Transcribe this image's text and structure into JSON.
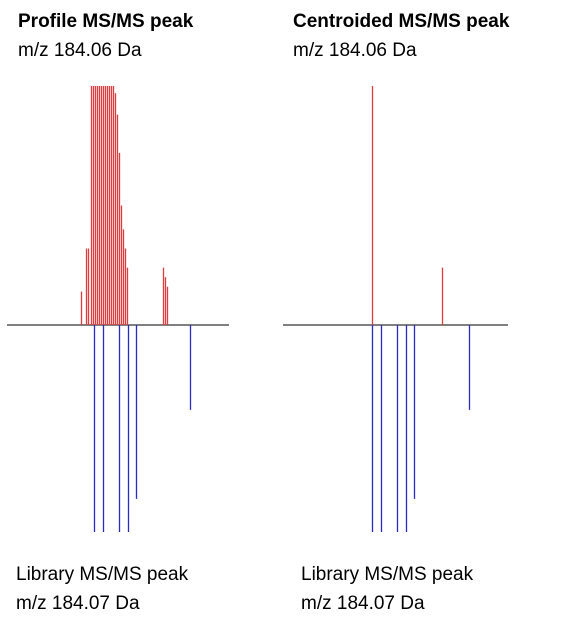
{
  "chart_data": [
    {
      "type": "mirror",
      "title": "Profile MS/MS peak",
      "subtitle": "m/z 184.06 Da",
      "footer_lines": [
        "Library MS/MS peak",
        "m/z 184.07 Da"
      ],
      "xlim": [
        0,
        100
      ],
      "ylim": [
        0,
        100
      ],
      "series": [
        {
          "color": "#e23b3b",
          "direction": "up",
          "x": [
            33.3,
            35.6,
            36.5,
            37.8,
            38.7,
            39.6,
            40.5,
            41.4,
            42.3,
            43.2,
            44.1,
            45.0,
            45.9,
            46.8,
            47.7,
            48.6,
            49.5,
            50.5,
            51.4,
            52.3,
            53.2,
            54.1,
            70.3,
            71.2,
            72.1
          ],
          "values": [
            14,
            32,
            32,
            100,
            100,
            100,
            100,
            100,
            100,
            100,
            100,
            100,
            100,
            100,
            100,
            97,
            88,
            72,
            50,
            40,
            32,
            24,
            24,
            20,
            16
          ]
        },
        {
          "color": "#2a2ac4",
          "direction": "down",
          "x": [
            39.2,
            43.2,
            50.5,
            54.5,
            58.1,
            82.4
          ],
          "values": [
            100,
            100,
            100,
            100,
            84,
            41
          ]
        }
      ]
    },
    {
      "type": "mirror",
      "title": "Centroided MS/MS peak",
      "subtitle": "m/z 184.06 Da",
      "footer_lines": [
        "Library MS/MS peak",
        "m/z 184.07 Da"
      ],
      "xlim": [
        0,
        100
      ],
      "ylim": [
        0,
        100
      ],
      "series": [
        {
          "color": "#e23b3b",
          "direction": "up",
          "x": [
            39.6,
            70.7
          ],
          "values": [
            100,
            24
          ]
        },
        {
          "color": "#2a2ac4",
          "direction": "down",
          "x": [
            39.6,
            43.6,
            50.7,
            54.7,
            58.2,
            82.7
          ],
          "values": [
            100,
            100,
            100,
            100,
            84,
            41
          ]
        }
      ]
    }
  ]
}
